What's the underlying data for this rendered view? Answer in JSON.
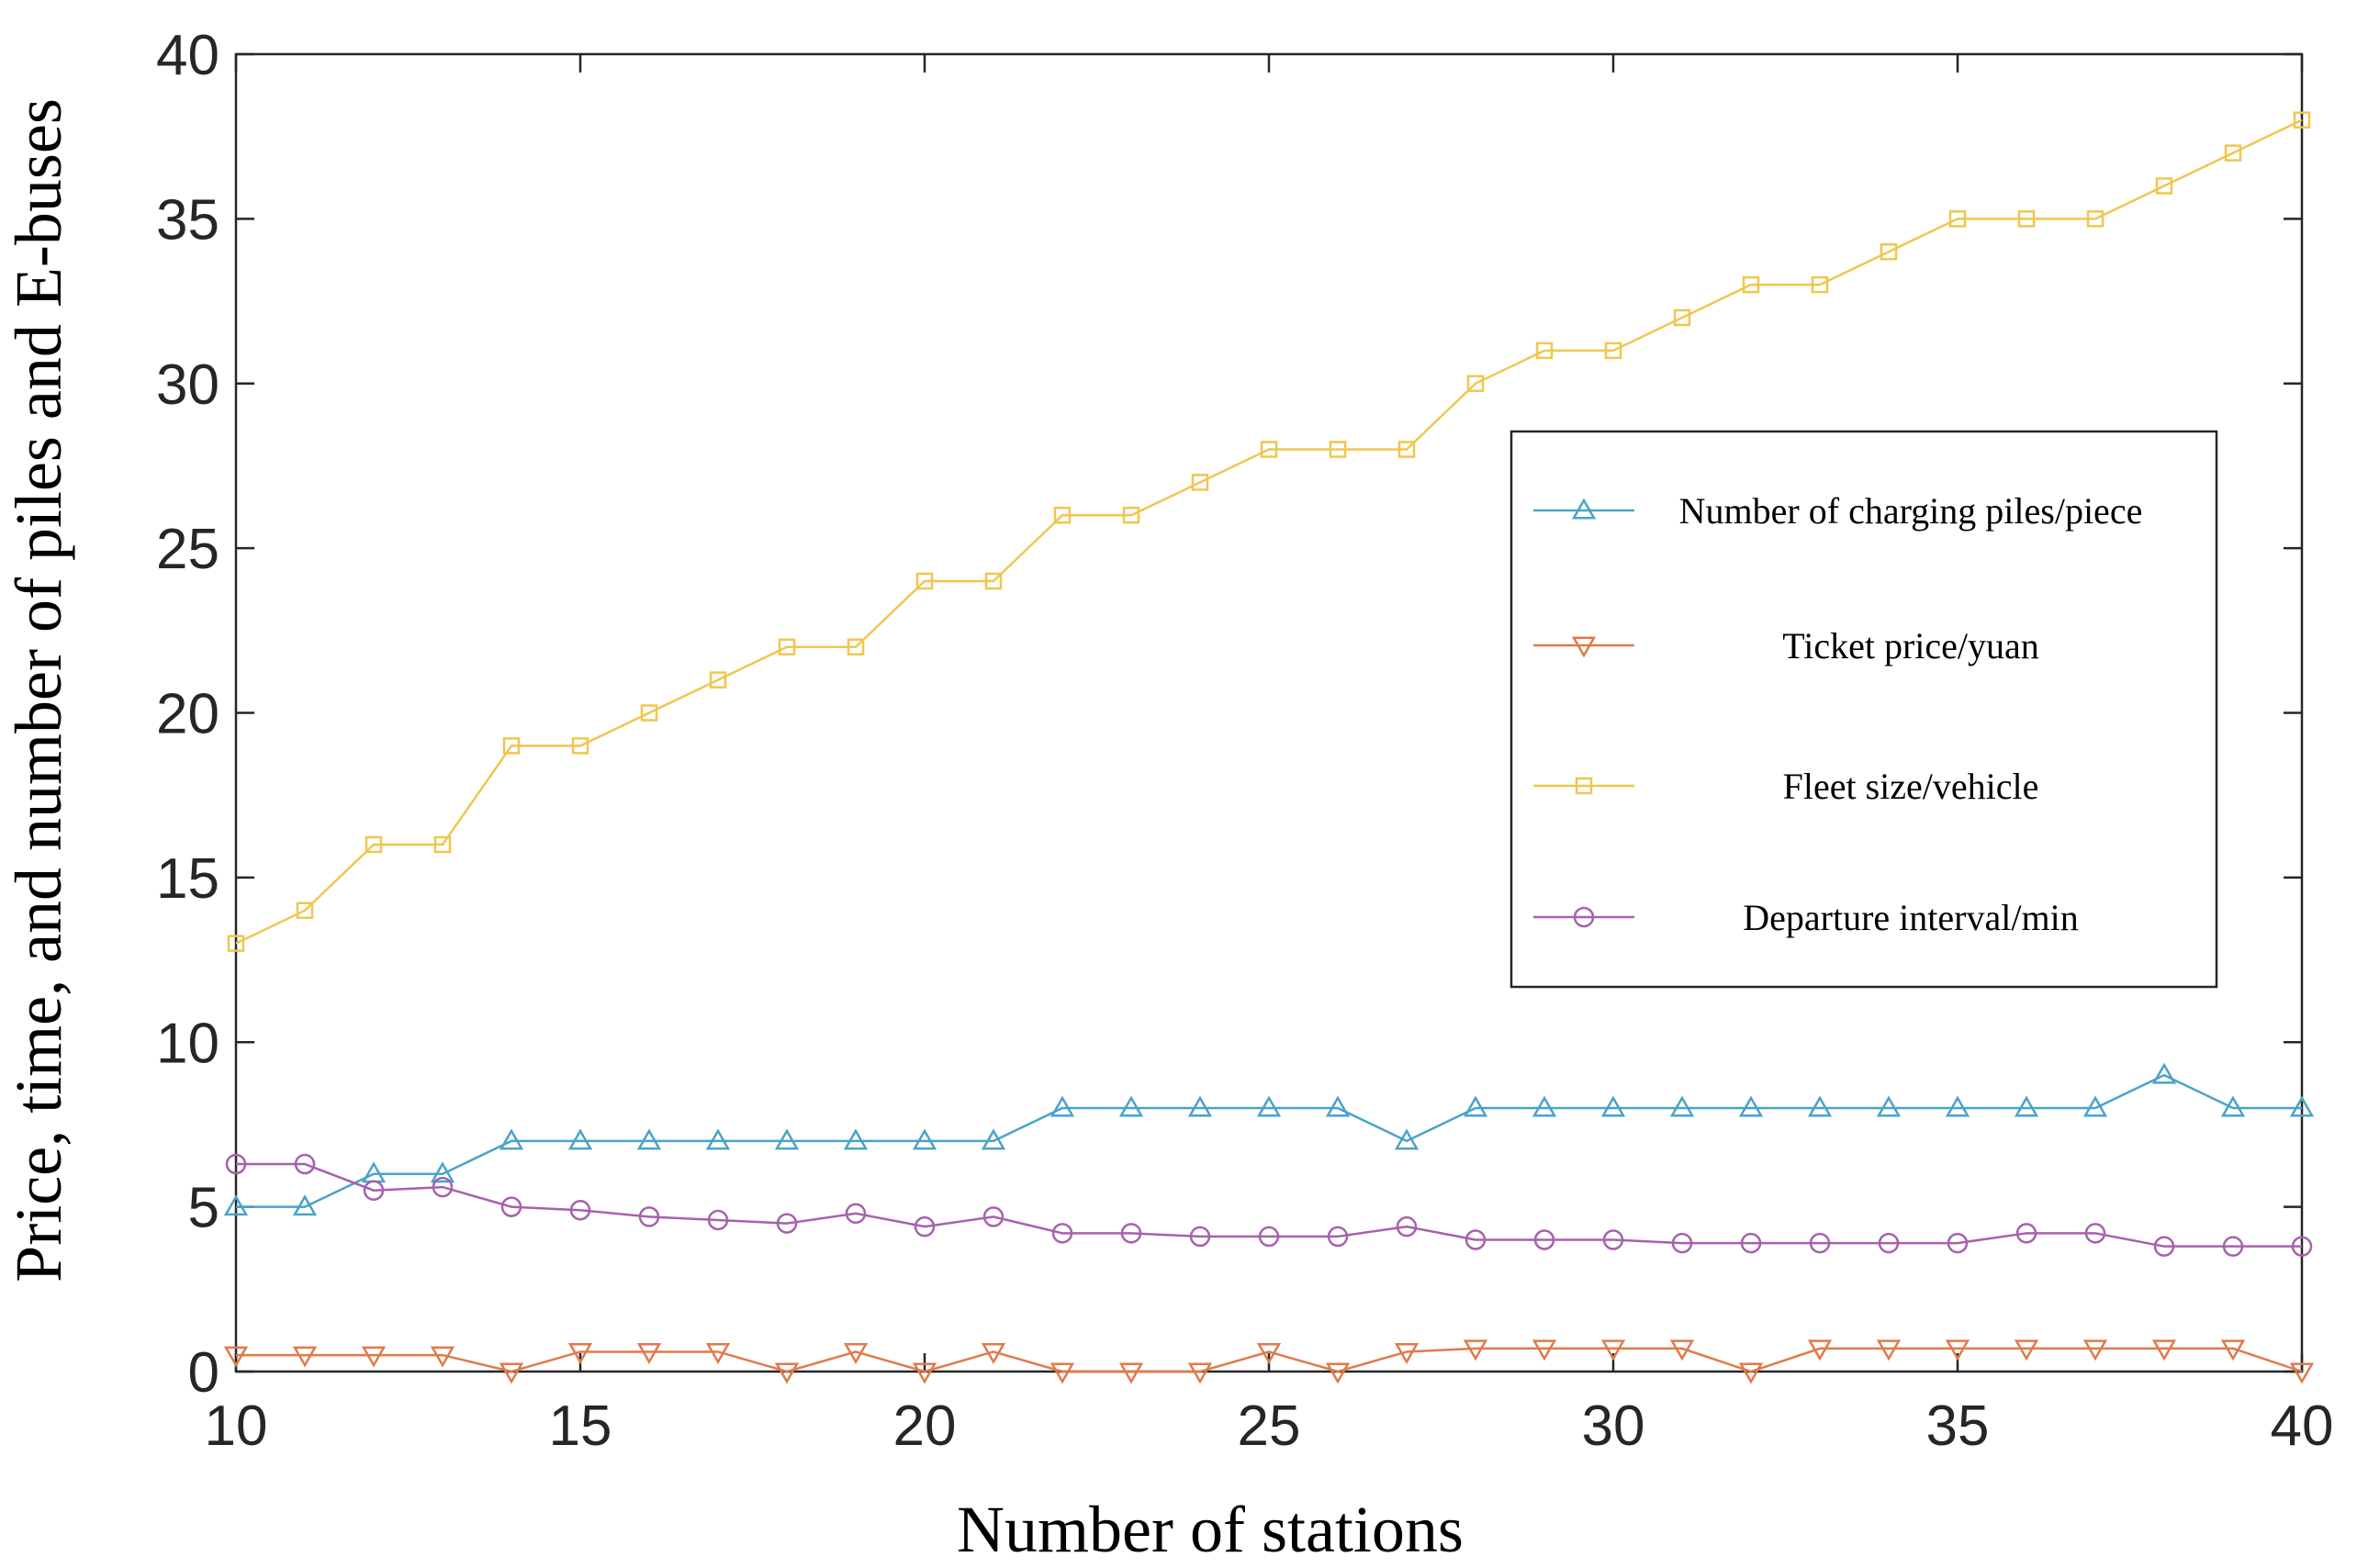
{
  "chart_data": {
    "type": "line",
    "title": "",
    "xlabel": "Number of stations",
    "ylabel": "Price, time, and number of piles and E-buses",
    "xlim": [
      10,
      40
    ],
    "ylim": [
      0,
      40
    ],
    "xticks": [
      10,
      15,
      20,
      25,
      30,
      35,
      40
    ],
    "yticks": [
      0,
      5,
      10,
      15,
      20,
      25,
      30,
      35,
      40
    ],
    "grid": false,
    "legend_position": "center-right",
    "x": [
      10,
      11,
      12,
      13,
      14,
      15,
      16,
      17,
      18,
      19,
      20,
      21,
      22,
      23,
      24,
      25,
      26,
      27,
      28,
      29,
      30,
      31,
      32,
      33,
      34,
      35,
      36,
      37,
      38,
      39,
      40
    ],
    "series": [
      {
        "name": "Number of charging piles/piece",
        "color": "#4aa3c8",
        "marker": "triangle-up",
        "values": [
          5,
          5,
          6,
          6,
          7,
          7,
          7,
          7,
          7,
          7,
          7,
          7,
          8,
          8,
          8,
          8,
          8,
          7,
          8,
          8,
          8,
          8,
          8,
          8,
          8,
          8,
          8,
          8,
          9,
          8,
          8
        ]
      },
      {
        "name": "Ticket price/yuan",
        "color": "#e07a4b",
        "marker": "triangle-down",
        "values": [
          0.5,
          0.5,
          0.5,
          0.5,
          0,
          0.6,
          0.6,
          0.6,
          0,
          0.6,
          0,
          0.6,
          0,
          0,
          0,
          0.6,
          0,
          0.6,
          0.7,
          0.7,
          0.7,
          0.7,
          0,
          0.7,
          0.7,
          0.7,
          0.7,
          0.7,
          0.7,
          0.7,
          0
        ]
      },
      {
        "name": "Fleet size/vehicle",
        "color": "#f0c64e",
        "marker": "square",
        "values": [
          13,
          14,
          16,
          16,
          19,
          19,
          20,
          21,
          22,
          22,
          24,
          24,
          26,
          26,
          27,
          28,
          28,
          28,
          30,
          31,
          31,
          32,
          33,
          33,
          34,
          35,
          35,
          35,
          36,
          37,
          38
        ]
      },
      {
        "name": "Departure interval/min",
        "color": "#a661ad",
        "marker": "circle",
        "values": [
          6.3,
          6.3,
          5.5,
          5.6,
          5.0,
          4.9,
          4.7,
          4.6,
          4.5,
          4.8,
          4.4,
          4.7,
          4.2,
          4.2,
          4.1,
          4.1,
          4.1,
          4.4,
          4.0,
          4.0,
          4.0,
          3.9,
          3.9,
          3.9,
          3.9,
          3.9,
          4.2,
          4.2,
          3.8,
          3.8,
          3.8
        ]
      }
    ]
  }
}
